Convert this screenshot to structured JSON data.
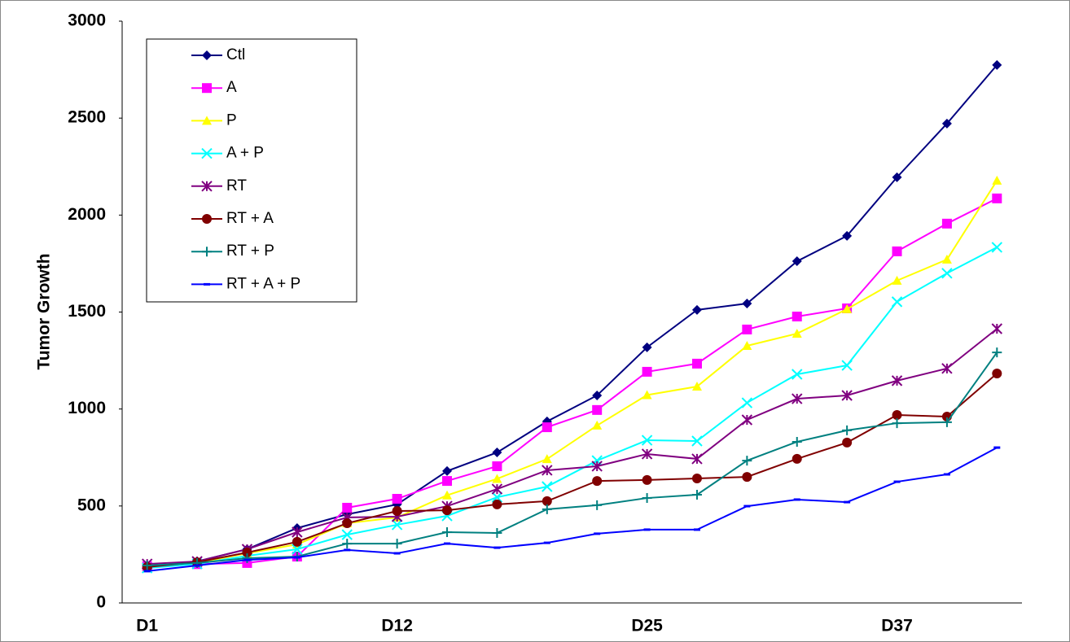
{
  "chart_data": {
    "type": "line",
    "y_label": "Tumor Growth",
    "categories": [
      "D1",
      null,
      null,
      null,
      null,
      "D12",
      null,
      null,
      null,
      null,
      "D25",
      null,
      null,
      null,
      null,
      "D37",
      null,
      null
    ],
    "ylim": [
      0,
      3000
    ],
    "yticks": [
      0,
      500,
      1000,
      1500,
      2000,
      2500,
      3000
    ],
    "legend": "top-left",
    "series": [
      {
        "name": "Ctl",
        "color": "#000080",
        "marker": "diamond",
        "values": [
          185,
          214,
          277,
          386,
          457,
          508,
          680,
          776,
          936,
          1070,
          1318,
          1511,
          1544,
          1762,
          1893,
          2195,
          2472,
          2774
        ]
      },
      {
        "name": "A",
        "color": "#ff00ff",
        "marker": "square",
        "values": [
          189,
          200,
          206,
          239,
          491,
          537,
          629,
          705,
          906,
          995,
          1192,
          1234,
          1410,
          1477,
          1519,
          1813,
          1956,
          2086
        ]
      },
      {
        "name": "P",
        "color": "#ffff00",
        "marker": "triangle",
        "values": [
          180,
          206,
          256,
          302,
          411,
          441,
          555,
          640,
          742,
          915,
          1072,
          1116,
          1326,
          1389,
          1515,
          1662,
          1771,
          2178
        ]
      },
      {
        "name": "A + P",
        "color": "#00ffff",
        "marker": "x",
        "values": [
          180,
          201,
          243,
          277,
          352,
          403,
          449,
          545,
          600,
          734,
          839,
          835,
          1032,
          1179,
          1225,
          1553,
          1700,
          1834
        ]
      },
      {
        "name": "RT",
        "color": "#800080",
        "marker": "star",
        "values": [
          201,
          214,
          277,
          365,
          441,
          445,
          499,
          587,
          684,
          705,
          768,
          743,
          944,
          1053,
          1070,
          1146,
          1209,
          1414
        ]
      },
      {
        "name": "RT + A",
        "color": "#800000",
        "marker": "circle",
        "values": [
          185,
          210,
          260,
          315,
          411,
          474,
          478,
          508,
          525,
          629,
          634,
          642,
          650,
          743,
          827,
          969,
          961,
          1183
        ]
      },
      {
        "name": "RT + P",
        "color": "#008080",
        "marker": "plus",
        "values": [
          193,
          206,
          231,
          239,
          306,
          306,
          365,
          361,
          483,
          504,
          541,
          558,
          734,
          831,
          890,
          927,
          932,
          1292
        ]
      },
      {
        "name": "RT + A + P",
        "color": "#0000ff",
        "marker": "dash",
        "values": [
          164,
          193,
          222,
          235,
          273,
          256,
          306,
          285,
          310,
          357,
          378,
          378,
          499,
          533,
          520,
          625,
          663,
          801
        ]
      }
    ]
  }
}
